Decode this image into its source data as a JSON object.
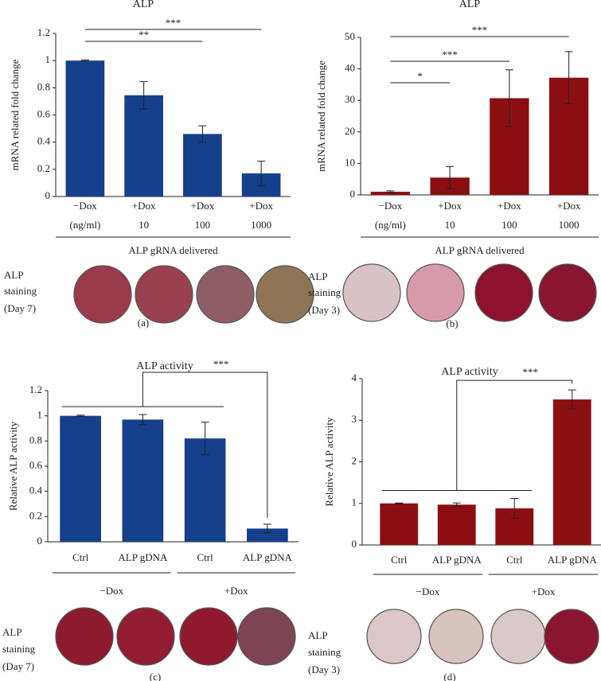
{
  "chart_data": [
    {
      "type": "bar",
      "title": "ALP",
      "y_label": "mRNA related fold change",
      "color": "#163f8c",
      "categories": [
        "−Dox",
        "+Dox",
        "+Dox",
        "+Dox"
      ],
      "category_sublabels": [
        "(ng/ml)",
        "10",
        "100",
        "1000"
      ],
      "values": [
        1.0,
        0.745,
        0.46,
        0.17
      ],
      "errors": [
        0.005,
        0.1,
        0.06,
        0.09
      ],
      "ylim": [
        0,
        1.2
      ],
      "yticks": [
        0,
        0.2,
        0.4,
        0.6,
        0.8,
        1,
        1.2
      ],
      "x_group_label": "ALP gRNA delivered",
      "significance": [
        {
          "label": "**",
          "span": [
            0,
            2
          ]
        },
        {
          "label": "***",
          "span": [
            0,
            3
          ]
        }
      ],
      "staining": {
        "label_lines": [
          "ALP",
          "staining",
          "(Day 7)"
        ],
        "colors": [
          "#9b3a4a",
          "#9a4150",
          "#8e5d66",
          "#8f7458"
        ]
      },
      "panel_label": "(a)"
    },
    {
      "type": "bar",
      "title": "ALP",
      "y_label": "mRNA related fold change",
      "color": "#8b0f12",
      "categories": [
        "−Dox",
        "+Dox",
        "+Dox",
        "+Dox"
      ],
      "category_sublabels": [
        "(ng/ml)",
        "10",
        "100",
        "1000"
      ],
      "values": [
        1.0,
        5.5,
        30.7,
        37.2
      ],
      "errors": [
        0.3,
        3.5,
        9,
        8.3
      ],
      "ylim": [
        0,
        50
      ],
      "yticks": [
        0,
        10,
        20,
        30,
        40,
        50
      ],
      "x_group_label": "ALP gRNA delivered",
      "significance": [
        {
          "label": "*",
          "span": [
            0,
            1
          ]
        },
        {
          "label": "***",
          "span": [
            0,
            2
          ]
        },
        {
          "label": "***",
          "span": [
            0,
            3
          ]
        }
      ],
      "staining": {
        "label_lines": [
          "ALP",
          "staining",
          "(Day 3)"
        ],
        "colors": [
          "#d8c2c6",
          "#d89aaa",
          "#8e1230",
          "#8a1530"
        ]
      },
      "panel_label": "(b)"
    },
    {
      "type": "bar",
      "title": "ALP activity",
      "y_label": "Relative ALP activity",
      "color": "#163f8c",
      "categories": [
        "Ctrl",
        "ALP gDNA",
        "Ctrl",
        "ALP gDNA"
      ],
      "values": [
        1.0,
        0.97,
        0.82,
        0.105
      ],
      "errors": [
        0.005,
        0.04,
        0.13,
        0.035
      ],
      "ylim": [
        0,
        1.2
      ],
      "yticks": [
        0,
        0.2,
        0.4,
        0.6,
        0.8,
        1,
        1.2
      ],
      "groups": [
        {
          "label": "−Dox",
          "span": [
            0,
            1
          ]
        },
        {
          "label": "+Dox",
          "span": [
            2,
            3
          ]
        }
      ],
      "bracket": {
        "label": "***",
        "span": [
          0,
          2
        ],
        "to": 3
      },
      "staining": {
        "label_lines": [
          "ALP",
          "staining",
          "(Day 7)"
        ],
        "colors": [
          "#8e1a2e",
          "#931d30",
          "#8f1a2e",
          "#7f4454"
        ]
      },
      "panel_label": "(c)"
    },
    {
      "type": "bar",
      "title": "ALP activity",
      "y_label": "Relative ALP activity",
      "color": "#8b0f12",
      "categories": [
        "Ctrl",
        "ALP gDNA",
        "Ctrl",
        "ALP gDNA"
      ],
      "values": [
        1.0,
        0.97,
        0.88,
        3.5
      ],
      "errors": [
        0.01,
        0.04,
        0.24,
        0.23
      ],
      "ylim": [
        0,
        4
      ],
      "yticks": [
        0,
        1,
        2,
        3,
        4
      ],
      "groups": [
        {
          "label": "−Dox",
          "span": [
            0,
            1
          ]
        },
        {
          "label": "+Dox",
          "span": [
            2,
            3
          ]
        }
      ],
      "bracket": {
        "label": "***",
        "span": [
          0,
          2
        ],
        "to": 3
      },
      "staining": {
        "label_lines": [
          "ALP",
          "staining",
          "(Day 3)"
        ],
        "colors": [
          "#dcc6c8",
          "#d7c3bd",
          "#d9c9c8",
          "#8a1530"
        ]
      },
      "panel_label": "(d)"
    }
  ]
}
